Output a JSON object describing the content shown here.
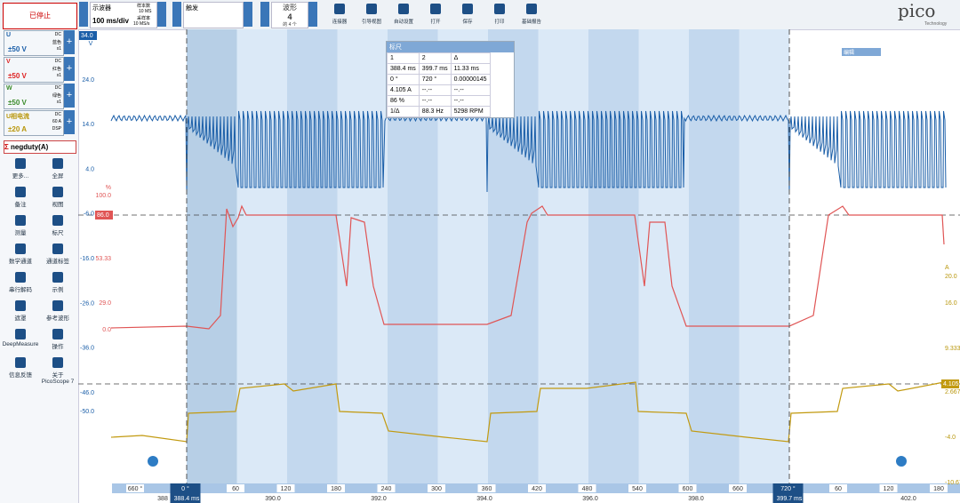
{
  "toolbar": {
    "stop_button": "已停止",
    "scope_mode": "示波器",
    "timebase": "100 ms/div",
    "samples_label": "样本数",
    "samples": "10 MS",
    "rate_label": "采样率",
    "rate": "10 MS/s",
    "trigger": "触发",
    "waveform_label": "波形",
    "waveform_count": "4",
    "waveform_sub": "的 4 个",
    "buttons": [
      "连接器",
      "引导视图",
      "自动设置",
      "打开",
      "保存",
      "打印",
      "基础报告"
    ],
    "logo": "pico",
    "logo_sub": "Technology"
  },
  "channels": [
    {
      "name": "U",
      "coupling": "DC",
      "probe": "蓝色",
      "mult": "x1",
      "range": "±50 V"
    },
    {
      "name": "V",
      "coupling": "DC",
      "probe": "红色",
      "mult": "x1",
      "range": "±50 V"
    },
    {
      "name": "W",
      "coupling": "DC",
      "probe": "绿色",
      "mult": "x1",
      "range": "±50 V"
    },
    {
      "name": "U相电流",
      "coupling": "DC",
      "probe": "60 A",
      "mult": "DSP",
      "range": "±20 A"
    }
  ],
  "math_channel": "negduty(A)",
  "tools": [
    "更多...",
    "全屏",
    "备注",
    "视图",
    "测量",
    "标尺",
    "数学通道",
    "通道标签",
    "串行解码",
    "示例",
    "遮罩",
    "参考波形",
    "DeepMeasure",
    "操作",
    "信息反馈",
    "关于 PicoScope 7"
  ],
  "left_axis": {
    "unit": "V",
    "top_tag": "34.0",
    "ticks": [
      "24.0",
      "14.0",
      "4.0",
      "-6.0",
      "-16.0",
      "-26.0",
      "-36.0",
      "-46.0"
    ],
    "extra": "-50.0"
  },
  "pct_axis": {
    "unit": "%",
    "ticks": [
      "100.0",
      "53.33",
      "29.0",
      "0.0"
    ],
    "tag": "86.0"
  },
  "amp_axis": {
    "unit": "A",
    "ticks": [
      "20.0",
      "16.0",
      "9.333",
      "2.667",
      "-4.0",
      "-10.67"
    ],
    "tag": "4.105"
  },
  "ruler": {
    "title": "标尺",
    "headers": [
      "1",
      "2",
      "Δ"
    ],
    "rows": [
      [
        "388.4 ms",
        "399.7 ms",
        "11.33 ms"
      ],
      [
        "0 °",
        "720 °",
        "0.00000145"
      ],
      [
        "4.105 A",
        "--.--",
        "--.--"
      ],
      [
        "86 %",
        "--.--",
        "--.--"
      ]
    ],
    "footer": [
      "1/Δ",
      "88.3 Hz",
      "5298 RPM"
    ]
  },
  "edit_widget": "编辑",
  "degree_axis": [
    "660 °",
    "0 °",
    "60",
    "120",
    "180",
    "240",
    "300",
    "360",
    "420",
    "480",
    "540",
    "600",
    "660",
    "720 °",
    "60",
    "120",
    "180"
  ],
  "time_axis": [
    "388",
    "388.4 ms",
    "390.0",
    "392.0",
    "394.0",
    "396.0",
    "398.0",
    "399.7 ms",
    "402.0"
  ]
}
